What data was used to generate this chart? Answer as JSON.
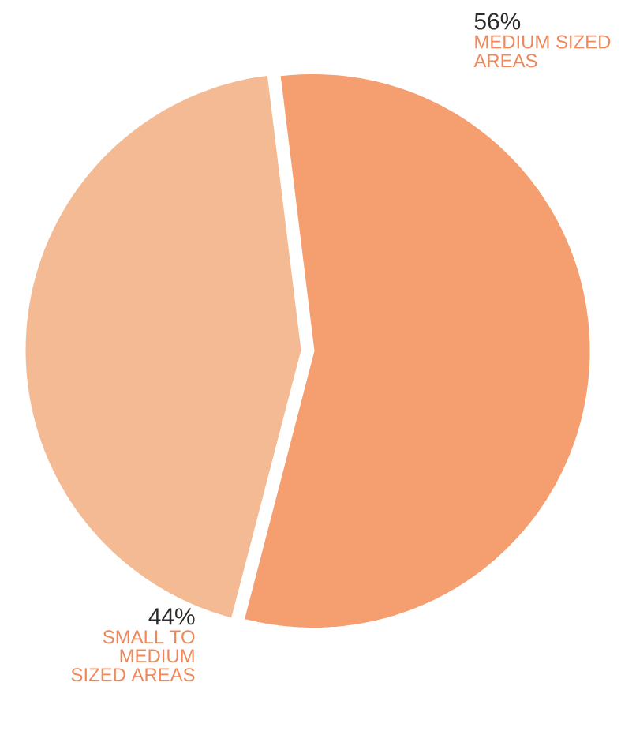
{
  "chart_data": {
    "type": "pie",
    "categories": [
      "MEDIUM SIZED AREAS",
      "SMALL TO MEDIUM SIZED AREAS"
    ],
    "values": [
      56,
      44
    ],
    "colors": [
      "#f59e70",
      "#f4ba94"
    ],
    "value_labels": [
      "56%",
      "44%"
    ]
  }
}
